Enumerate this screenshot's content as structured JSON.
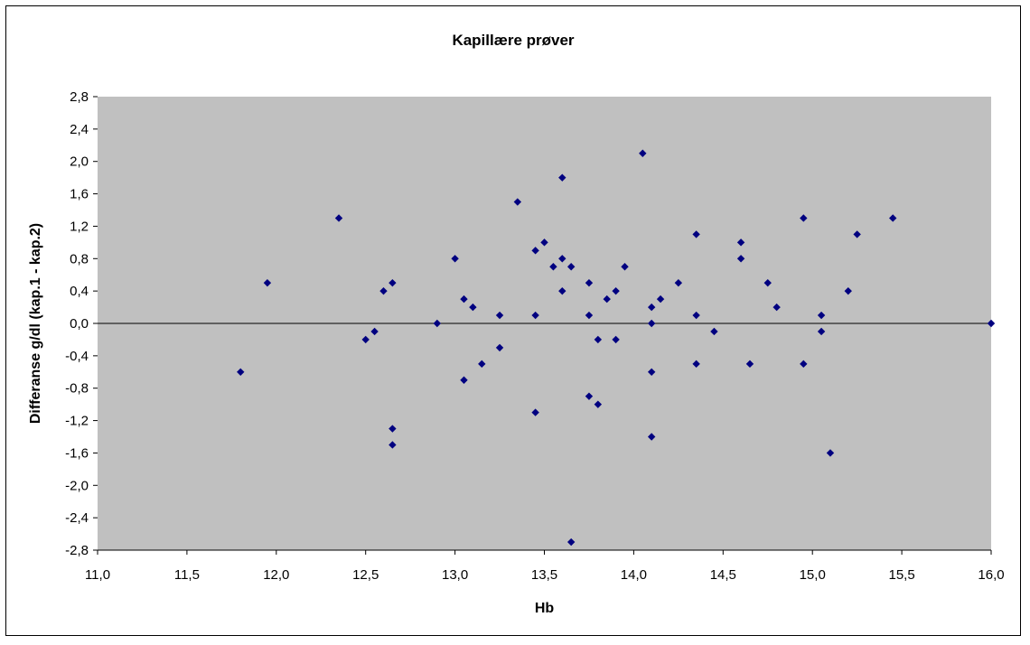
{
  "chart_data": {
    "type": "scatter",
    "title": "Kapillære prøver",
    "xlabel": "Hb",
    "ylabel": "Differanse g/dl (kap.1 - kap.2)",
    "xlim": [
      11.0,
      16.0
    ],
    "ylim": [
      -2.8,
      2.8
    ],
    "x_ticks": [
      "11,0",
      "11,5",
      "12,0",
      "12,5",
      "13,0",
      "13,5",
      "14,0",
      "14,5",
      "15,0",
      "15,5",
      "16,0"
    ],
    "y_ticks": [
      "2,8",
      "2,4",
      "2,0",
      "1,6",
      "1,2",
      "0,8",
      "0,4",
      "0,0",
      "-0,4",
      "-0,8",
      "-1,2",
      "-1,6",
      "-2,0",
      "-2,4",
      "-2,8"
    ],
    "plot_area_color": "#c0c0c0",
    "marker_color": "#000080",
    "grid": false,
    "zero_line": true,
    "series": [
      {
        "points": [
          [
            11.8,
            -0.6
          ],
          [
            11.95,
            0.5
          ],
          [
            12.35,
            1.3
          ],
          [
            12.5,
            -0.2
          ],
          [
            12.55,
            -0.1
          ],
          [
            12.6,
            0.4
          ],
          [
            12.65,
            0.5
          ],
          [
            12.65,
            -1.3
          ],
          [
            12.65,
            -1.5
          ],
          [
            12.9,
            0.0
          ],
          [
            13.0,
            0.8
          ],
          [
            13.05,
            0.3
          ],
          [
            13.05,
            -0.7
          ],
          [
            13.1,
            0.2
          ],
          [
            13.15,
            -0.5
          ],
          [
            13.25,
            0.1
          ],
          [
            13.25,
            -0.3
          ],
          [
            13.35,
            1.5
          ],
          [
            13.45,
            0.9
          ],
          [
            13.45,
            0.1
          ],
          [
            13.45,
            -1.1
          ],
          [
            13.5,
            1.0
          ],
          [
            13.55,
            0.7
          ],
          [
            13.6,
            1.8
          ],
          [
            13.6,
            0.8
          ],
          [
            13.6,
            0.4
          ],
          [
            13.65,
            0.7
          ],
          [
            13.65,
            -2.7
          ],
          [
            13.75,
            0.5
          ],
          [
            13.75,
            0.1
          ],
          [
            13.75,
            -0.9
          ],
          [
            13.8,
            -0.2
          ],
          [
            13.8,
            -1.0
          ],
          [
            13.85,
            0.3
          ],
          [
            13.9,
            0.4
          ],
          [
            13.9,
            -0.2
          ],
          [
            13.95,
            0.7
          ],
          [
            14.05,
            2.1
          ],
          [
            14.1,
            0.2
          ],
          [
            14.1,
            0.0
          ],
          [
            14.1,
            -0.6
          ],
          [
            14.1,
            -1.4
          ],
          [
            14.15,
            0.3
          ],
          [
            14.25,
            0.5
          ],
          [
            14.35,
            1.1
          ],
          [
            14.35,
            0.1
          ],
          [
            14.35,
            -0.5
          ],
          [
            14.45,
            -0.1
          ],
          [
            14.6,
            1.0
          ],
          [
            14.6,
            0.8
          ],
          [
            14.65,
            -0.5
          ],
          [
            14.75,
            0.5
          ],
          [
            14.8,
            0.2
          ],
          [
            14.95,
            1.3
          ],
          [
            14.95,
            -0.5
          ],
          [
            15.05,
            0.1
          ],
          [
            15.05,
            -0.1
          ],
          [
            15.1,
            -1.6
          ],
          [
            15.2,
            0.4
          ],
          [
            15.25,
            1.1
          ],
          [
            15.45,
            1.3
          ],
          [
            16.0,
            0.0
          ]
        ]
      }
    ]
  }
}
